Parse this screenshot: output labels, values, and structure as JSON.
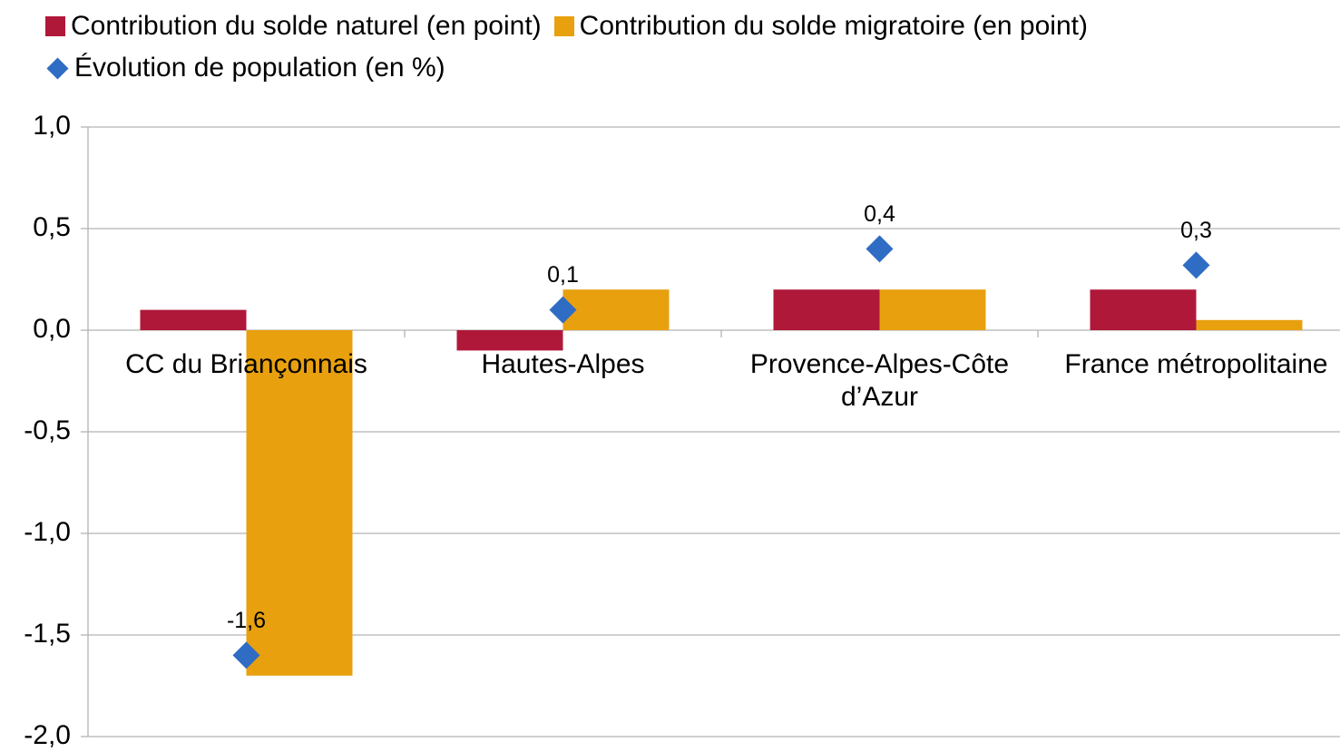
{
  "chart_data": {
    "type": "bar",
    "categories": [
      "CC du Briançonnais",
      "Hautes-Alpes",
      "Provence-Alpes-Côte d’Azur",
      "France métropolitaine"
    ],
    "series": [
      {
        "name": "Contribution du solde naturel (en point)",
        "color": "#b0183a",
        "values": [
          0.1,
          -0.1,
          0.2,
          0.2
        ]
      },
      {
        "name": "Contribution du solde migratoire (en point)",
        "color": "#e8a00e",
        "values": [
          -1.7,
          0.2,
          0.2,
          0.05
        ]
      },
      {
        "name": "Évolution de population (en %)",
        "type": "scatter",
        "marker": "diamond",
        "color": "#2f6cc4",
        "values": [
          -1.6,
          0.1,
          0.4,
          0.32
        ],
        "value_labels": [
          "-1,6",
          "0,1",
          "0,4",
          "0,3"
        ]
      }
    ],
    "ylim": [
      -2.0,
      1.0
    ],
    "yticks": [
      {
        "value": -2.0,
        "label": "-2,0"
      },
      {
        "value": -1.5,
        "label": "-1,5"
      },
      {
        "value": -1.0,
        "label": "-1,0"
      },
      {
        "value": -0.5,
        "label": "-0,5"
      },
      {
        "value": 0.0,
        "label": "0,0"
      },
      {
        "value": 0.5,
        "label": "0,5"
      },
      {
        "value": 1.0,
        "label": "1,0"
      }
    ],
    "grid": true,
    "legend": "top"
  }
}
